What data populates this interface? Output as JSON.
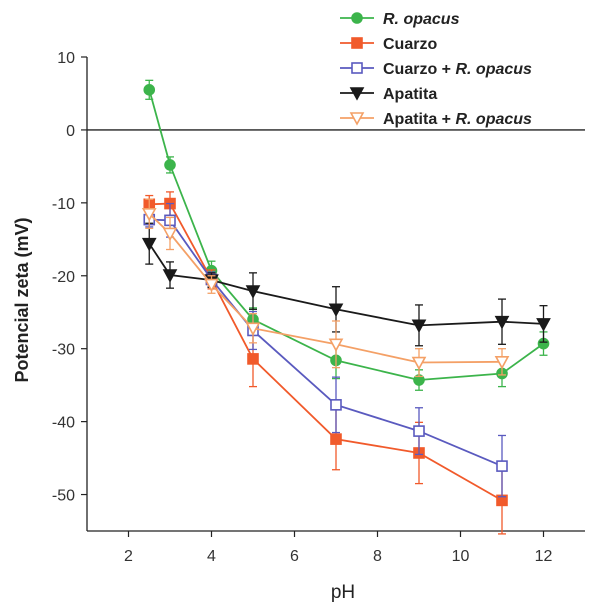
{
  "chart_data": {
    "type": "line",
    "title": "",
    "xlabel": "pH",
    "ylabel": "Potencial zeta (mV)",
    "xlim": [
      1,
      13
    ],
    "ylim": [
      -55,
      10
    ],
    "xticks": [
      2,
      4,
      6,
      8,
      10,
      12
    ],
    "yticks": [
      10,
      0,
      -10,
      -20,
      -30,
      -40,
      -50
    ],
    "zero_line": true,
    "grid": false,
    "legend_position": "top-right",
    "series": [
      {
        "name": "R. opacus",
        "name_parts": [
          {
            "text": "R. opacus",
            "italic": true
          }
        ],
        "color": "#3cb44b",
        "marker": "circle-filled",
        "x": [
          2.5,
          3,
          4,
          5,
          7,
          9,
          11,
          12
        ],
        "y": [
          5.5,
          -4.8,
          -19.3,
          -26,
          -31.6,
          -34.3,
          -33.4,
          -29.3
        ],
        "err": [
          1.3,
          1.1,
          1.3,
          1.6,
          2.5,
          1.4,
          1.8,
          1.6
        ]
      },
      {
        "name": "Cuarzo",
        "name_parts": [
          {
            "text": "Cuarzo",
            "italic": false
          }
        ],
        "color": "#f15a2b",
        "marker": "square-filled",
        "x": [
          2.5,
          3,
          4,
          5,
          7,
          9,
          11
        ],
        "y": [
          -10.2,
          -10.1,
          -20.5,
          -31.4,
          -42.4,
          -44.3,
          -50.8
        ],
        "err": [
          1.2,
          1.6,
          1.3,
          3.8,
          4.2,
          4.2,
          4.6
        ]
      },
      {
        "name": "Cuarzo + R. opacus",
        "name_parts": [
          {
            "text": "Cuarzo + ",
            "italic": false
          },
          {
            "text": "R. opacus",
            "italic": true
          }
        ],
        "color": "#5a5abf",
        "marker": "square-open",
        "x": [
          2.5,
          3,
          4,
          5,
          7,
          9,
          11
        ],
        "y": [
          -12.3,
          -12.4,
          -20.5,
          -27.5,
          -37.7,
          -41.3,
          -46.1
        ],
        "err": [
          1.0,
          2.3,
          1.0,
          2.6,
          3.8,
          3.2,
          4.2
        ]
      },
      {
        "name": "Apatita",
        "name_parts": [
          {
            "text": "Apatita",
            "italic": false
          }
        ],
        "color": "#1a1a1a",
        "marker": "triangle-down-filled",
        "x": [
          2.5,
          3,
          4,
          5,
          7,
          9,
          11,
          12
        ],
        "y": [
          -15.6,
          -19.9,
          -20.6,
          -22.1,
          -24.6,
          -26.8,
          -26.3,
          -26.6
        ],
        "err": [
          2.8,
          1.8,
          1.0,
          2.5,
          3.1,
          2.8,
          3.1,
          2.5
        ]
      },
      {
        "name": "Apatita + R. opacus",
        "name_parts": [
          {
            "text": "Apatita + ",
            "italic": false
          },
          {
            "text": "R. opacus",
            "italic": true
          }
        ],
        "color": "#f4a066",
        "marker": "triangle-down-open",
        "x": [
          2.5,
          3,
          4,
          5,
          7,
          9,
          11
        ],
        "y": [
          -11.5,
          -14.2,
          -21.2,
          -27.2,
          -29.4,
          -31.9,
          -31.8
        ],
        "err": [
          2.0,
          2.2,
          1.2,
          2.0,
          3.2,
          1.9,
          1.8
        ]
      }
    ]
  }
}
